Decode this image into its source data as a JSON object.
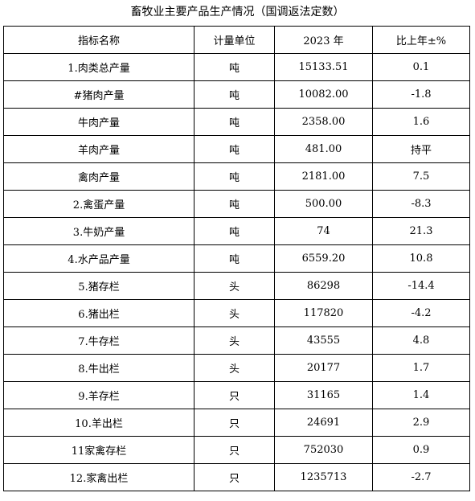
{
  "title": "畜牧业主要产品生产情况（国调返法定数）",
  "table": {
    "headers": [
      "指标名称",
      "计量单位",
      "2023 年",
      "比上年±%"
    ],
    "rows": [
      [
        "1.肉类总产量",
        "吨",
        "15133.51",
        "0.1"
      ],
      [
        "#猪肉产量",
        "吨",
        "10082.00",
        "-1.8"
      ],
      [
        "牛肉产量",
        "吨",
        "2358.00",
        "1.6"
      ],
      [
        "羊肉产量",
        "吨",
        "481.00",
        "持平"
      ],
      [
        "禽肉产量",
        "吨",
        "2181.00",
        "7.5"
      ],
      [
        "2.禽蛋产量",
        "吨",
        "500.00",
        "-8.3"
      ],
      [
        "3.牛奶产量",
        "吨",
        "74",
        "21.3"
      ],
      [
        "4.水产品产量",
        "吨",
        "6559.20",
        "10.8"
      ],
      [
        "5.猪存栏",
        "头",
        "86298",
        "-14.4"
      ],
      [
        "6.猪出栏",
        "头",
        "117820",
        "-4.2"
      ],
      [
        "7.牛存栏",
        "头",
        "43555",
        "4.8"
      ],
      [
        "8.牛出栏",
        "头",
        "20177",
        "1.7"
      ],
      [
        "9.羊存栏",
        "只",
        "31165",
        "1.4"
      ],
      [
        "10.羊出栏",
        "只",
        "24691",
        "2.9"
      ],
      [
        "11家禽存栏",
        "只",
        "752030",
        "0.9"
      ],
      [
        "12.家禽出栏",
        "只",
        "1235713",
        "-2.7"
      ]
    ]
  }
}
